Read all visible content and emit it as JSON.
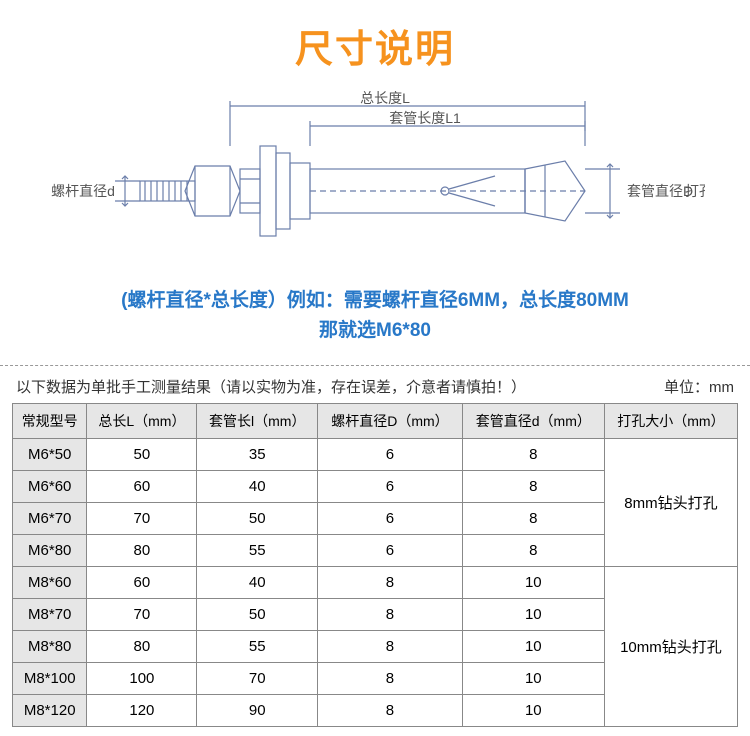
{
  "title": "尺寸说明",
  "diagram": {
    "labels": {
      "total_length": "总长度L",
      "sleeve_length": "套管长度L1",
      "rod_diameter": "螺杆直径d",
      "sleeve_diameter": "套管直径D",
      "hole_diameter": "打孔直径"
    },
    "stroke_color": "#6b7eaa",
    "text_color": "#555555"
  },
  "example_line1": "(螺杆直径*总长度）例如：需要螺杆直径6MM，总长度80MM",
  "example_line2": "那就选M6*80",
  "note_text": "以下数据为单批手工测量结果（请以实物为准，存在误差，介意者请慎拍！）",
  "unit_text": "单位：mm",
  "table": {
    "headers": [
      "常规型号",
      "总长L（mm）",
      "套管长l（mm）",
      "螺杆直径D（mm）",
      "套管直径d（mm）",
      "打孔大小（mm）"
    ],
    "groups": [
      {
        "drill_label": "8mm钻头打孔",
        "rows": [
          [
            "M6*50",
            "50",
            "35",
            "6",
            "8"
          ],
          [
            "M6*60",
            "60",
            "40",
            "6",
            "8"
          ],
          [
            "M6*70",
            "70",
            "50",
            "6",
            "8"
          ],
          [
            "M6*80",
            "80",
            "55",
            "6",
            "8"
          ]
        ]
      },
      {
        "drill_label": "10mm钻头打孔",
        "rows": [
          [
            "M8*60",
            "60",
            "40",
            "8",
            "10"
          ],
          [
            "M8*70",
            "70",
            "50",
            "8",
            "10"
          ],
          [
            "M8*80",
            "80",
            "55",
            "8",
            "10"
          ],
          [
            "M8*100",
            "100",
            "70",
            "8",
            "10"
          ],
          [
            "M8*120",
            "120",
            "90",
            "8",
            "10"
          ]
        ]
      }
    ]
  }
}
